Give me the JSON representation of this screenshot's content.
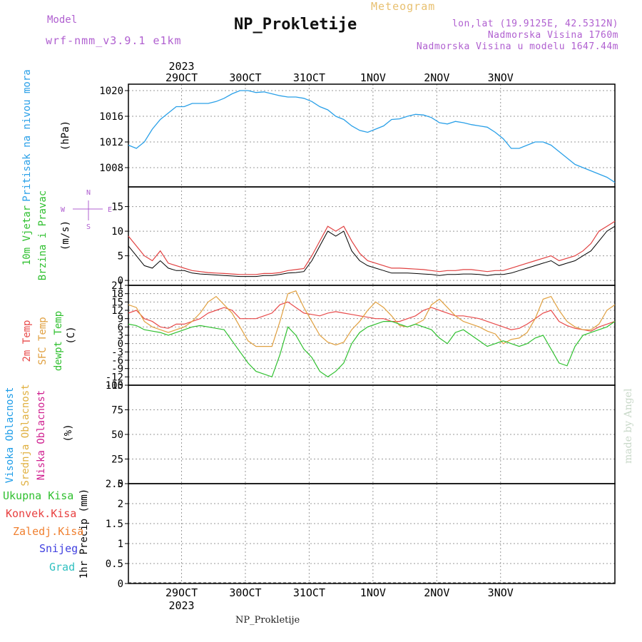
{
  "header": {
    "model_label": "Model",
    "model_name": "wrf-nmm_v3.9.1  e1km",
    "meteogram_label": "Meteogram",
    "station": "NP_Prokletije",
    "lonlat": "lon,lat (19.9125E, 42.5312N)",
    "elevation": "Nadmorska Visina 1760m",
    "elevation_model": "Nadmorska Visina u modelu 1647.44m"
  },
  "footer": {
    "station": "NP_Prokletije"
  },
  "credit": "made by Angel",
  "time_axis": {
    "year_top": "2023",
    "year_bottom": "2023",
    "days": [
      "29OCT",
      "30OCT",
      "31OCT",
      "1NOV",
      "2NOV",
      "3NOV"
    ]
  },
  "panel_labels": {
    "pressure": [
      "Pritisak na nivou mora"
    ],
    "pressure_unit": "(hPa)",
    "wind": [
      "10m Vjetar",
      "Brzina i Pravac"
    ],
    "wind_unit": "(m/s)",
    "wind_compass": {
      "n": "N",
      "s": "S",
      "w": "W",
      "e": "E"
    },
    "temp": [
      "2m Temp",
      "SFC Temp",
      "dewpt Temp"
    ],
    "temp_unit": "(C)",
    "cloud": [
      "Visoka Oblacnost",
      "Srednja Oblacnost",
      "Niska Oblacnost"
    ],
    "cloud_unit": "(%)",
    "precip_legend": [
      "Ukupna Kisa",
      "Konvek.Kisa",
      "Zaledj.Kisa",
      "Snijeg",
      "Grad"
    ],
    "precip_unit": "1hr Precip (mm)"
  },
  "colors": {
    "pressure": "#2aa0e8",
    "temp2m": "#e84a4a",
    "sfc": "#e0a040",
    "dewpt": "#30c030",
    "high_cloud": "#1e9de8",
    "mid_cloud": "#e0b040",
    "low_cloud": "#d02090",
    "precip": "#30c030",
    "convective": "#e84040",
    "freezing": "#f08030",
    "snow": "#4040e0",
    "hail": "#30c0c0",
    "wind_gust": "#e04040",
    "wind_speed": "#000000",
    "compass": "#b060d0"
  },
  "chart_data": [
    {
      "type": "line",
      "name": "pressure",
      "ylim": [
        1005,
        1021
      ],
      "yticks": [
        1008,
        1012,
        1016,
        1020
      ],
      "x": [
        0,
        3,
        6,
        9,
        12,
        15,
        18,
        21,
        24,
        27,
        30,
        33,
        36,
        39,
        42,
        45,
        48,
        51,
        54,
        57,
        60,
        63,
        66,
        69,
        72,
        75,
        78,
        81,
        84,
        87,
        90,
        93,
        96,
        99,
        102,
        105,
        108,
        111,
        114,
        117,
        120,
        123,
        126,
        129,
        132,
        135,
        138,
        141,
        144,
        147,
        150,
        153,
        156,
        159,
        162,
        165,
        168,
        171,
        174,
        177,
        180,
        183
      ],
      "y": [
        1011.5,
        1011,
        1012,
        1014,
        1015.5,
        1016.5,
        1017.5,
        1017.5,
        1018,
        1018,
        1018,
        1018.3,
        1018.8,
        1019.5,
        1020,
        1020,
        1019.7,
        1019.8,
        1019.5,
        1019.2,
        1019,
        1019,
        1018.8,
        1018.3,
        1017.5,
        1017,
        1016,
        1015.5,
        1014.5,
        1013.8,
        1013.5,
        1014,
        1014.5,
        1015.5,
        1015.6,
        1016,
        1016.3,
        1016.2,
        1015.8,
        1015,
        1014.8,
        1015.2,
        1015,
        1014.7,
        1014.5,
        1014.3,
        1013.5,
        1012.5,
        1011,
        1011,
        1011.5,
        1012,
        1012,
        1011.5,
        1010.5,
        1009.5,
        1008.5,
        1008,
        1007.5,
        1007,
        1006.5,
        1005.7
      ]
    },
    {
      "type": "line",
      "name": "wind",
      "ylim": [
        -1,
        19
      ],
      "yticks": [
        0,
        5,
        10,
        15
      ],
      "x": [
        0,
        3,
        6,
        9,
        12,
        15,
        18,
        21,
        24,
        27,
        30,
        33,
        36,
        39,
        42,
        45,
        48,
        51,
        54,
        57,
        60,
        63,
        66,
        69,
        72,
        75,
        78,
        81,
        84,
        87,
        90,
        93,
        96,
        99,
        102,
        105,
        108,
        111,
        114,
        117,
        120,
        123,
        126,
        129,
        132,
        135,
        138,
        141,
        144,
        147,
        150,
        153,
        156,
        159,
        162,
        165,
        168,
        171,
        174,
        177,
        180,
        183
      ],
      "series": [
        {
          "name": "speed",
          "values": [
            7,
            5,
            3,
            2.5,
            4,
            2.5,
            2,
            2,
            1.5,
            1.3,
            1.2,
            1.1,
            1,
            0.9,
            0.8,
            0.8,
            0.8,
            1,
            1,
            1.2,
            1.5,
            1.6,
            1.8,
            4,
            7,
            10,
            9,
            10,
            6,
            4,
            3,
            2.5,
            2,
            1.5,
            1.5,
            1.5,
            1.4,
            1.3,
            1.2,
            1,
            1.2,
            1.2,
            1.3,
            1.3,
            1.2,
            1,
            1.2,
            1.2,
            1.5,
            2,
            2.5,
            3,
            3.5,
            4,
            3,
            3.5,
            4,
            5,
            6,
            8,
            10,
            11
          ]
        },
        {
          "name": "gust",
          "values": [
            9,
            7,
            5,
            4,
            6,
            3.5,
            3,
            2.5,
            2,
            1.8,
            1.6,
            1.5,
            1.4,
            1.3,
            1.2,
            1.2,
            1.2,
            1.4,
            1.4,
            1.6,
            2,
            2.2,
            2.4,
            5,
            8,
            11,
            10,
            11,
            8,
            5.5,
            4,
            3.5,
            3,
            2.5,
            2.5,
            2.4,
            2.3,
            2.2,
            2,
            1.8,
            2,
            2,
            2.2,
            2.2,
            2,
            1.8,
            2,
            2,
            2.5,
            3,
            3.5,
            4,
            4.5,
            5,
            4,
            4.5,
            5,
            6,
            7.5,
            10,
            11,
            12
          ]
        }
      ]
    },
    {
      "type": "line",
      "name": "temperature",
      "ylim": [
        -15,
        21
      ],
      "yticks": [
        -15,
        -12,
        -9,
        -6,
        -3,
        0,
        3,
        6,
        9,
        12,
        15,
        18,
        21
      ],
      "x": [
        0,
        3,
        6,
        9,
        12,
        15,
        18,
        21,
        24,
        27,
        30,
        33,
        36,
        39,
        42,
        45,
        48,
        51,
        54,
        57,
        60,
        63,
        66,
        69,
        72,
        75,
        78,
        81,
        84,
        87,
        90,
        93,
        96,
        99,
        102,
        105,
        108,
        111,
        114,
        117,
        120,
        123,
        126,
        129,
        132,
        135,
        138,
        141,
        144,
        147,
        150,
        153,
        156,
        159,
        162,
        165,
        168,
        171,
        174,
        177,
        180,
        183
      ],
      "series": [
        {
          "name": "2m",
          "values": [
            11,
            12,
            9,
            8,
            6,
            5.5,
            7,
            7,
            8,
            9,
            11,
            12,
            13,
            12,
            9,
            9,
            9,
            10,
            11,
            14,
            15,
            13,
            11,
            10.5,
            10,
            11,
            11.5,
            11,
            10.5,
            10,
            9.5,
            9,
            9,
            8,
            8,
            9,
            10,
            12,
            13,
            12,
            11,
            10,
            10,
            9.5,
            9,
            8,
            7,
            6,
            5,
            5.5,
            7,
            9,
            11,
            12,
            8,
            6.5,
            5.5,
            5,
            4.5,
            6,
            7,
            8
          ]
        },
        {
          "name": "sfc",
          "values": [
            14,
            13,
            8,
            6,
            5,
            4,
            5,
            6,
            8,
            11,
            15,
            17,
            14,
            11,
            6,
            1,
            -1,
            -1,
            -1,
            8,
            18,
            19,
            13,
            8,
            3,
            0.5,
            -0.5,
            0.5,
            5,
            8,
            12,
            15,
            13,
            10,
            6.5,
            6,
            7,
            8.5,
            14,
            16,
            13,
            10,
            8,
            7,
            6,
            4.5,
            3.5,
            0,
            1.5,
            2,
            4,
            9,
            16,
            17,
            12,
            8,
            6,
            5,
            5,
            7,
            12,
            14
          ]
        },
        {
          "name": "dewpt",
          "values": [
            7,
            6.5,
            5,
            4.5,
            4,
            3,
            4,
            5,
            6,
            6.5,
            6,
            5.5,
            5,
            1,
            -3,
            -7,
            -10,
            -11,
            -12,
            -4,
            6,
            3,
            -2,
            -5,
            -10,
            -12,
            -10,
            -7,
            0,
            4,
            6,
            7,
            8,
            8,
            7,
            6,
            7,
            6,
            5,
            2,
            0,
            4,
            5,
            3,
            1,
            -1,
            0,
            1,
            0,
            -1,
            0,
            2,
            3,
            -2,
            -7,
            -8,
            -1,
            3,
            4,
            5,
            6,
            8
          ]
        }
      ]
    },
    {
      "type": "bar",
      "name": "cloud_cover",
      "ylim": [
        0,
        100
      ],
      "yticks": [
        0,
        25,
        50,
        75,
        100
      ],
      "x": [
        0,
        3,
        6,
        9,
        12,
        15,
        18,
        21,
        24,
        27,
        30,
        33,
        36,
        39,
        42,
        45,
        48,
        51,
        54,
        57,
        60,
        63,
        66,
        69,
        72,
        75,
        78,
        81,
        84,
        87,
        90,
        93,
        96,
        99,
        102,
        105,
        108,
        111,
        114,
        117,
        120,
        123,
        126,
        129,
        132,
        135,
        138,
        141,
        144,
        147,
        150,
        153,
        156,
        159,
        162,
        165,
        168,
        171,
        174,
        177,
        180,
        183
      ],
      "series": [
        {
          "name": "high",
          "values": [
            0,
            0,
            0,
            0,
            0,
            0,
            0,
            0,
            0,
            0,
            0,
            0,
            0,
            0,
            0,
            0,
            0,
            0,
            0,
            0,
            0,
            0,
            0,
            0,
            0,
            0,
            0,
            0,
            0,
            0,
            0,
            0,
            0,
            0,
            0,
            0,
            0,
            0,
            0,
            0,
            0,
            0,
            0,
            0,
            0,
            0,
            0,
            0,
            0,
            0,
            0,
            0,
            0,
            0,
            0,
            0,
            0,
            0,
            0,
            0,
            0,
            0
          ]
        },
        {
          "name": "mid",
          "values": [
            0,
            0,
            0,
            0,
            0,
            0,
            0,
            0,
            0,
            0,
            0,
            0,
            0,
            0,
            0,
            0,
            0,
            0,
            0,
            0,
            0,
            0,
            0,
            0,
            0,
            0,
            0,
            0,
            0,
            0,
            0,
            0,
            0,
            0,
            0,
            0,
            0,
            0,
            0,
            0,
            0,
            0,
            0,
            0,
            0,
            0,
            0,
            0,
            0,
            0,
            0,
            0,
            0,
            0,
            0,
            0,
            0,
            0,
            0,
            0,
            0,
            0
          ]
        },
        {
          "name": "low",
          "values": [
            0,
            0,
            0,
            0,
            0,
            0,
            0,
            0,
            0,
            0,
            0,
            0,
            0,
            0,
            0,
            0,
            0,
            0,
            0,
            0,
            0,
            0,
            0,
            0,
            0,
            0,
            0,
            0,
            0,
            0,
            0,
            0,
            0,
            0,
            0,
            0,
            0,
            0,
            0,
            0,
            0,
            0,
            0,
            0,
            0,
            0,
            0,
            0,
            0,
            0,
            0,
            0,
            0,
            0,
            0,
            0,
            0,
            0,
            0,
            0,
            0,
            0
          ]
        }
      ]
    },
    {
      "type": "bar",
      "name": "precip_1h",
      "ylim": [
        0,
        2.5
      ],
      "yticks": [
        0,
        0.5,
        1,
        1.5,
        2,
        2.5
      ],
      "x": [
        0,
        3,
        6,
        9,
        12,
        15,
        18,
        21,
        24,
        27,
        30,
        33,
        36,
        39,
        42,
        45,
        48,
        51,
        54,
        57,
        60,
        63,
        66,
        69,
        72,
        75,
        78,
        81,
        84,
        87,
        90,
        93,
        96,
        99,
        102,
        105,
        108,
        111,
        114,
        117,
        120,
        123,
        126,
        129,
        132,
        135,
        138,
        141,
        144,
        147,
        150,
        153,
        156,
        159,
        162,
        165,
        168,
        171,
        174,
        177,
        180,
        183
      ],
      "values": [
        0,
        0,
        0,
        0,
        0,
        0,
        0,
        0,
        0,
        0,
        0,
        0,
        0,
        0,
        0,
        0,
        0,
        0,
        0,
        0,
        0,
        0,
        0,
        0,
        0,
        0,
        0,
        0,
        0,
        0,
        0,
        0,
        0,
        0,
        0,
        0,
        0,
        0,
        0,
        0,
        0,
        0,
        0,
        0,
        0,
        0,
        0,
        0,
        0,
        0,
        0,
        0,
        0,
        0,
        0,
        0,
        0,
        0,
        0,
        0,
        0,
        0
      ]
    }
  ]
}
